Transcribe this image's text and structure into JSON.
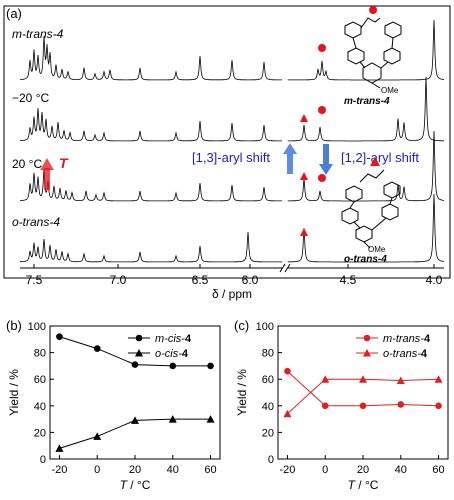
{
  "panel_a": {
    "label": "(a)",
    "row_labels": [
      {
        "text": "m-trans-4"
      },
      {
        "text": "−20 °C"
      },
      {
        "text": "20 °C"
      },
      {
        "text": "o-trans-4"
      }
    ],
    "t_label": "T",
    "shift_left": "[1,3]-aryl shift",
    "shift_right": "[1,2]-aryl shift",
    "structure_top_label": "m-trans-4",
    "structure_bottom_label": "o-trans-4",
    "ome_label_top": "OMe",
    "ome_label_bottom": "OMe",
    "xaxis_label": "δ / ppm",
    "xticks": [
      "7.5",
      "7.0",
      "6.5",
      "6.0",
      "4.5",
      "4.0"
    ],
    "colors": {
      "marker": "#e8141b",
      "arrow_up": "#5b8fde",
      "arrow_down": "#4a7fd6",
      "t_arrow": "#e8141b",
      "shift_text": "#1c1cc8"
    }
  },
  "chart_data": [
    {
      "panel": "(b)",
      "type": "line",
      "x": [
        -20,
        0,
        20,
        40,
        60
      ],
      "xlabel": "T / °C",
      "ylabel": "Yield / %",
      "xlim": [
        -25,
        65
      ],
      "ylim": [
        0,
        100
      ],
      "xticks": [
        -20,
        0,
        20,
        40,
        60
      ],
      "yticks": [
        0,
        20,
        40,
        60,
        80,
        100
      ],
      "legend_position": "top-right",
      "color": "#000000",
      "series": [
        {
          "name": "m-cis-4",
          "marker": "circle",
          "values": [
            92,
            83,
            71,
            70,
            70
          ]
        },
        {
          "name": "o-cis-4",
          "marker": "triangle",
          "values": [
            8,
            17,
            29,
            30,
            30
          ]
        }
      ]
    },
    {
      "panel": "(c)",
      "type": "line",
      "x": [
        -20,
        0,
        20,
        40,
        60
      ],
      "xlabel": "T / °C",
      "ylabel": "Yield / %",
      "xlim": [
        -25,
        65
      ],
      "ylim": [
        0,
        100
      ],
      "xticks": [
        -20,
        0,
        20,
        40,
        60
      ],
      "yticks": [
        0,
        20,
        40,
        60,
        80,
        100
      ],
      "legend_position": "top-right",
      "color": "#e02020",
      "series": [
        {
          "name": "m-trans-4",
          "marker": "circle",
          "values": [
            66,
            40,
            40,
            41,
            40
          ]
        },
        {
          "name": "o-trans-4",
          "marker": "triangle",
          "values": [
            34,
            60,
            60,
            59,
            60
          ]
        }
      ]
    }
  ]
}
